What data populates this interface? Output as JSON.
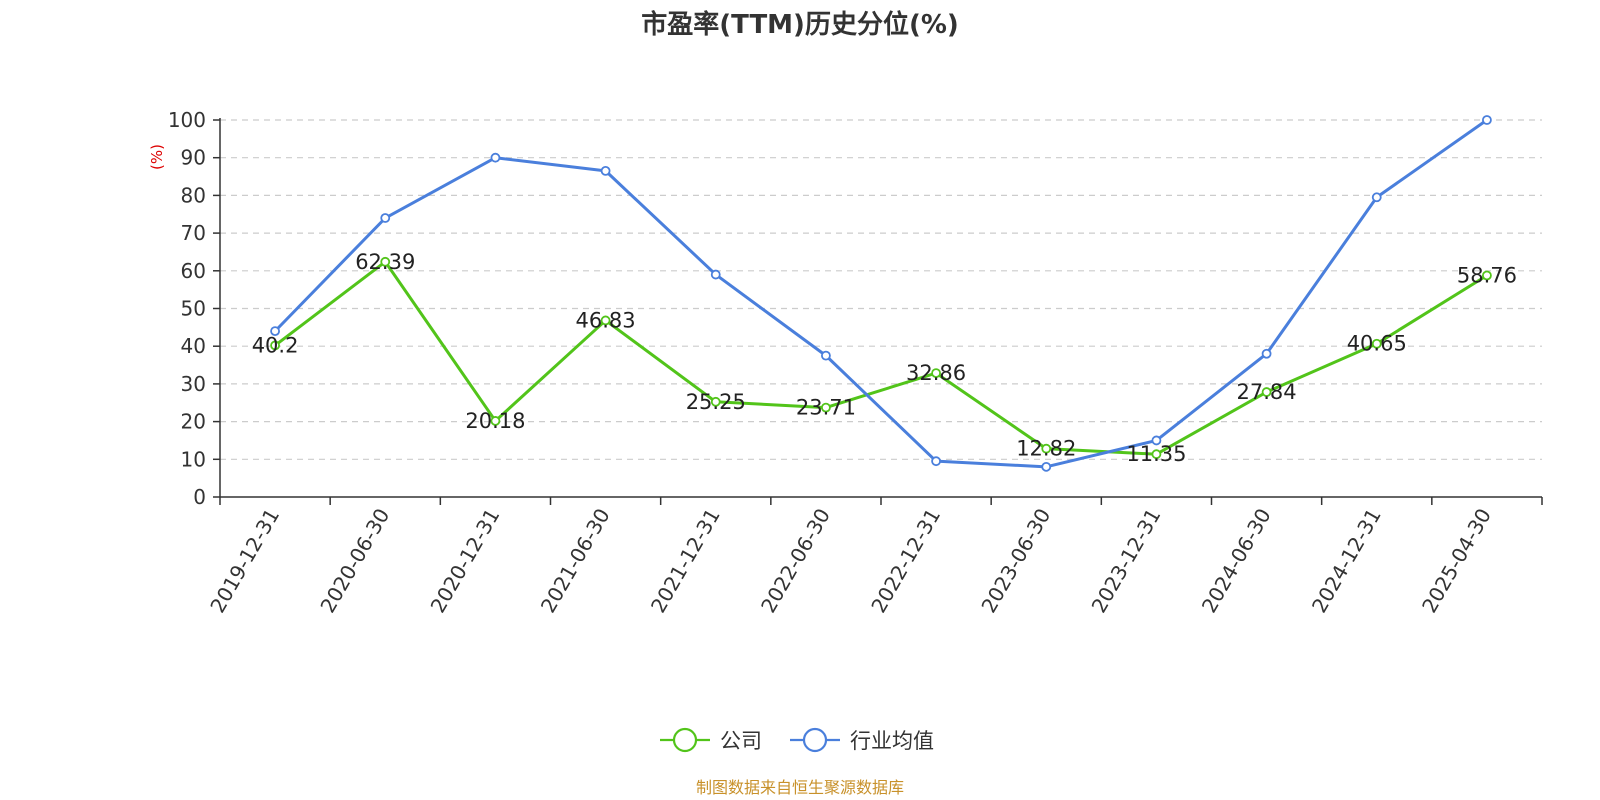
{
  "chart_data": {
    "type": "line",
    "title": "市盈率(TTM)历史分位(%)",
    "yunit": "(%)",
    "ylim": [
      0,
      100
    ],
    "yticks": [
      0,
      10,
      20,
      30,
      40,
      50,
      60,
      70,
      80,
      90,
      100
    ],
    "grid": true,
    "legend_position": "bottom-center",
    "categories": [
      "2019-12-31",
      "2020-06-30",
      "2020-12-31",
      "2021-06-30",
      "2021-12-31",
      "2022-06-30",
      "2022-12-31",
      "2023-06-30",
      "2023-12-31",
      "2024-06-30",
      "2024-12-31",
      "2025-04-30"
    ],
    "series": [
      {
        "name": "公司",
        "color": "#52c41a",
        "values": [
          40.2,
          62.39,
          20.18,
          46.83,
          25.25,
          23.71,
          32.86,
          12.82,
          11.35,
          27.84,
          40.65,
          58.76
        ],
        "labels": [
          "40.2",
          "62.39",
          "20.18",
          "46.83",
          "25.25",
          "23.71",
          "32.86",
          "12.82",
          "11.35",
          "27.84",
          "40.65",
          "58.76"
        ]
      },
      {
        "name": "行业均值",
        "color": "#4a7fdc",
        "values": [
          44,
          74,
          90,
          86.5,
          59,
          37.5,
          9.5,
          8,
          15,
          38,
          79.5,
          100
        ]
      }
    ],
    "source": "制图数据来自恒生聚源数据库",
    "unit_color": "#dd0000",
    "source_color": "#c8912a"
  }
}
